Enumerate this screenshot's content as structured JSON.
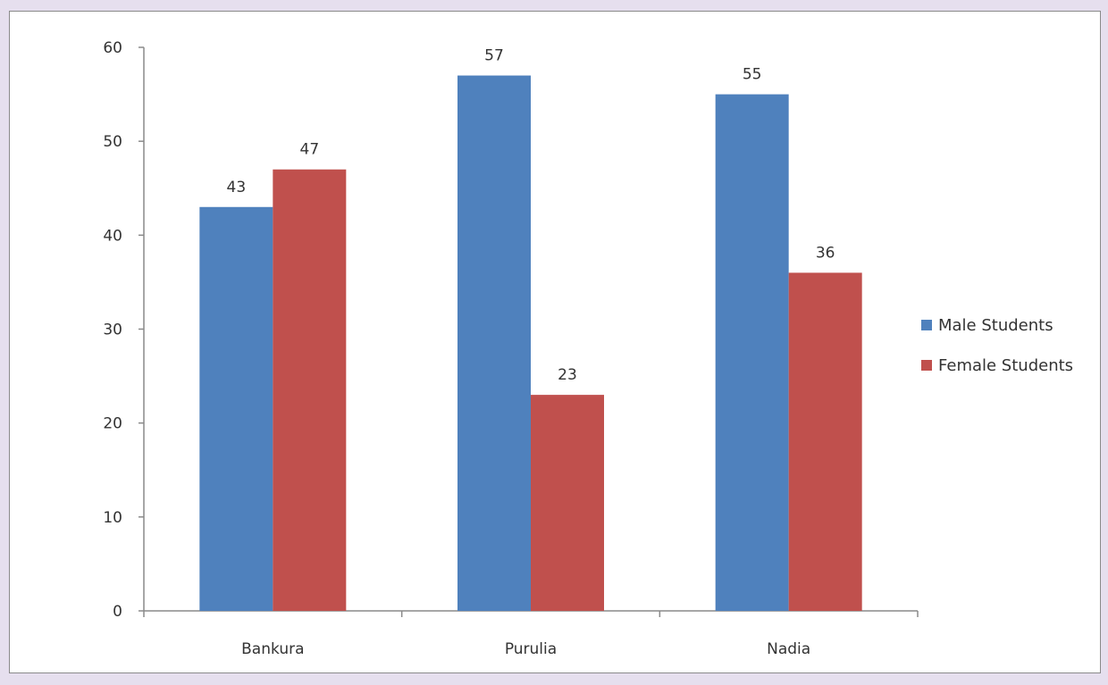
{
  "chart_data": {
    "type": "bar",
    "categories": [
      "Bankura",
      "Purulia",
      "Nadia"
    ],
    "series": [
      {
        "name": "Male Students",
        "values": [
          43,
          57,
          55
        ],
        "color": "#4f81bd"
      },
      {
        "name": "Female Students",
        "values": [
          47,
          23,
          36
        ],
        "color": "#c0504d"
      }
    ],
    "ylim": [
      0,
      60
    ],
    "yticks": [
      0,
      10,
      20,
      30,
      40,
      50,
      60
    ],
    "grid": false,
    "legend_position": "right",
    "data_labels": true
  }
}
